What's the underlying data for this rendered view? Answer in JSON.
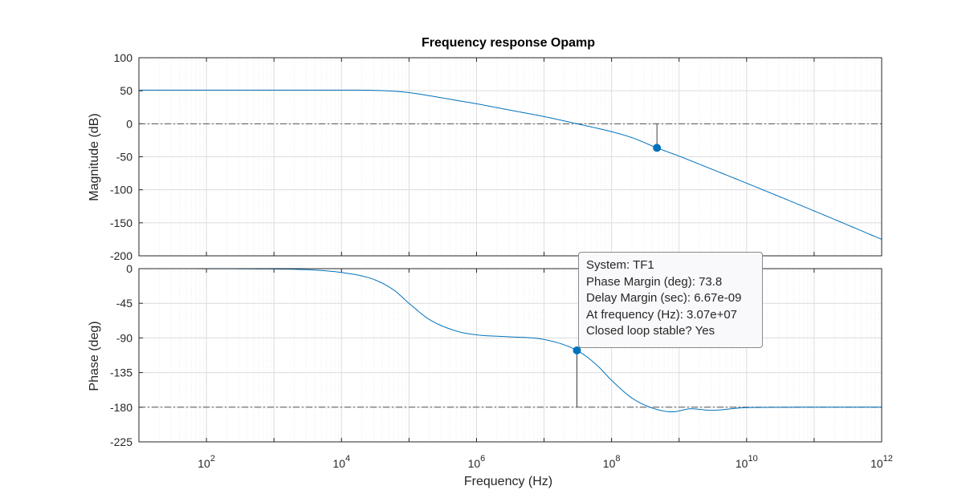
{
  "chart_data": {
    "type": "line",
    "title": "Frequency response Opamp",
    "xlabel": "Frequency  (Hz)",
    "x_scale": "log",
    "xlim": [
      10,
      1000000000000
    ],
    "x_ticks": [
      {
        "value": 100,
        "base": "10",
        "exp": "2"
      },
      {
        "value": 10000,
        "base": "10",
        "exp": "4"
      },
      {
        "value": 1000000,
        "base": "10",
        "exp": "6"
      },
      {
        "value": 100000000,
        "base": "10",
        "exp": "8"
      },
      {
        "value": 10000000000,
        "base": "10",
        "exp": "10"
      },
      {
        "value": 1000000000000,
        "base": "10",
        "exp": "12"
      }
    ],
    "grid": true,
    "series_color": "#0072bd",
    "panels": [
      {
        "id": "magnitude",
        "ylabel": "Magnitude (dB)",
        "ylim": [
          -200,
          100
        ],
        "yticks": [
          100,
          50,
          0,
          -50,
          -100,
          -150,
          -200
        ],
        "reference_line": 0,
        "series": {
          "x": [
            10,
            100,
            1000,
            10000,
            30000,
            60000,
            100000,
            200000,
            500000,
            1000000,
            3000000,
            10000000,
            30700000,
            100000000,
            200000000,
            470000000,
            1000000000,
            3000000000,
            10000000000,
            100000000000,
            1000000000000
          ],
          "y": [
            51,
            51,
            51,
            51,
            50.6,
            49.3,
            47.2,
            42.5,
            35.5,
            30.3,
            21,
            10.9,
            0,
            -12,
            -21,
            -36.5,
            -49,
            -68.5,
            -90,
            -132,
            -175
          ]
        },
        "marker": {
          "x": 470000000,
          "y": -36.5
        }
      },
      {
        "id": "phase",
        "ylabel": "Phase (deg)",
        "ylim": [
          -225,
          0
        ],
        "yticks": [
          0,
          -45,
          -90,
          -135,
          -180,
          -225
        ],
        "reference_line": -180,
        "series": {
          "x": [
            10,
            1000,
            10000,
            30000,
            60000,
            100000,
            200000,
            500000,
            1000000,
            3000000,
            10000000,
            30700000,
            60000000,
            100000000,
            200000000,
            400000000,
            800000000,
            1500000000,
            3000000000,
            10000000000,
            100000000000,
            1000000000000
          ],
          "y": [
            0,
            -0.5,
            -5,
            -14,
            -28,
            -45,
            -66,
            -81,
            -86,
            -88.5,
            -92,
            -106.2,
            -125,
            -145,
            -168,
            -181,
            -186,
            -182,
            -184,
            -180.5,
            -180,
            -180
          ]
        },
        "marker": {
          "x": 30700000,
          "y": -106.2
        }
      }
    ],
    "annotation": {
      "lines": [
        "System: TF1",
        "Phase Margin (deg): 73.8",
        "Delay Margin (sec): 6.67e-09",
        "At frequency (Hz): 3.07e+07",
        "Closed loop stable? Yes"
      ]
    }
  }
}
